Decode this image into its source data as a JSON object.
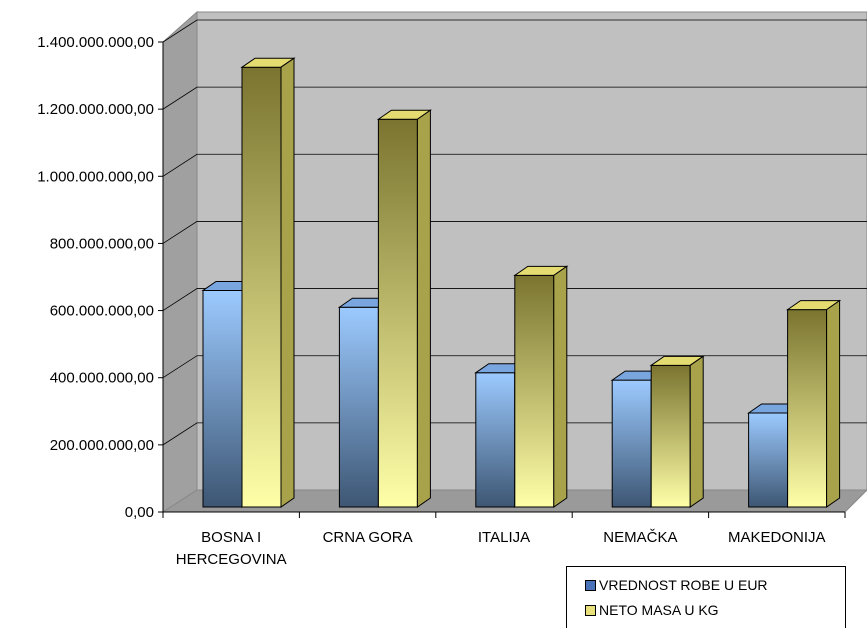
{
  "chart_data": {
    "type": "bar",
    "categories": [
      "BOSNA I HERCEGOVINA",
      "CRNA GORA",
      "ITALIJA",
      "NEMAČKA",
      "MAKEDONIJA"
    ],
    "series": [
      {
        "name": "VREDNOST ROBE U EUR",
        "values": [
          645000000,
          595000000,
          400000000,
          378000000,
          280000000
        ],
        "color": "#8ab4f0"
      },
      {
        "name": "NETO MASA U KG",
        "values": [
          1310000000,
          1155000000,
          690000000,
          422000000,
          588000000
        ],
        "color": "#e8e07a"
      }
    ],
    "ylim": [
      0,
      1400000000
    ],
    "y_ticks": [
      "0,00",
      "200.000.000,00",
      "400.000.000,00",
      "600.000.000,00",
      "800.000.000,00",
      "1.000.000.000,00",
      "1.200.000.000,00",
      "1.400.000.000,00"
    ],
    "grid": true,
    "three_d": true,
    "legend_position": "bottom-right"
  }
}
